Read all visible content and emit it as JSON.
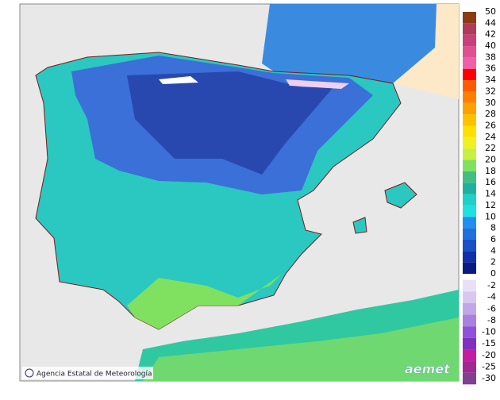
{
  "legend": {
    "labels": [
      50,
      44,
      42,
      40,
      38,
      36,
      34,
      32,
      30,
      28,
      26,
      24,
      22,
      20,
      18,
      16,
      14,
      12,
      10,
      8,
      6,
      4,
      2,
      0
    ],
    "colors": [
      "#8b3a14",
      "#b03a5a",
      "#c8407a",
      "#e0508f",
      "#f060a8",
      "#ff0000",
      "#ff5a00",
      "#ff8000",
      "#ffa000",
      "#ffc000",
      "#ffe000",
      "#f0f020",
      "#c8f040",
      "#80e060",
      "#40c080",
      "#20b0a0",
      "#20d0c8",
      "#20e0e0",
      "#2090f0",
      "#2070e0",
      "#1850c8",
      "#1030a8",
      "#0a1a80"
    ],
    "negative_labels": [
      -2,
      -4,
      -6,
      -8,
      -10,
      -15,
      -20,
      -25,
      -30
    ],
    "negative_colors": [
      "#e8e0f8",
      "#d8c8f0",
      "#c0a8e8",
      "#a880e0",
      "#9050d8",
      "#8030c0",
      "#c020a0",
      "#a02890",
      "#804090"
    ]
  },
  "credit": "Agencia Estatal de Meteorología",
  "logo": "aemet"
}
